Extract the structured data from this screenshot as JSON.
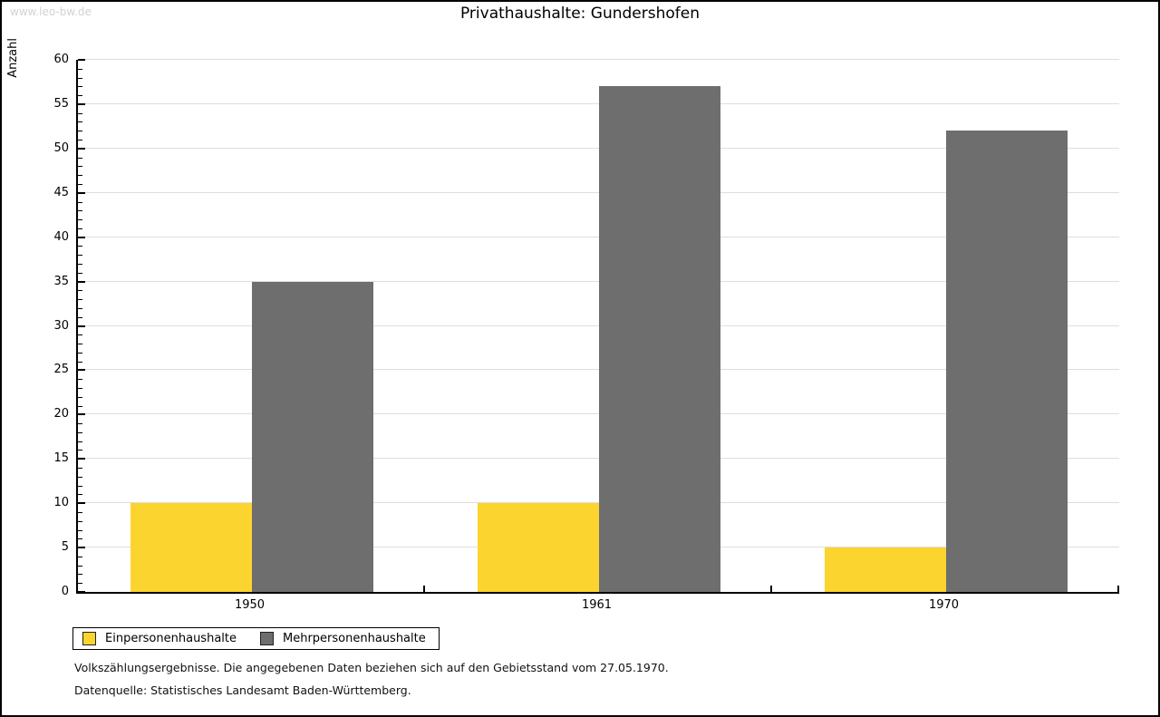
{
  "watermark": "www.leo-bw.de",
  "title": "Privathaushalte: Gundershofen",
  "chart_data": {
    "type": "bar",
    "title": "Privathaushalte: Gundershofen",
    "categories": [
      "1950",
      "1961",
      "1970"
    ],
    "series": [
      {
        "name": "Einpersonenhaushalte",
        "color": "#fcd42f",
        "values": [
          10,
          10,
          5
        ]
      },
      {
        "name": "Mehrpersonenhaushalte",
        "color": "#6e6e6e",
        "values": [
          35,
          57,
          52
        ]
      }
    ],
    "xlabel": "",
    "ylabel": "Anzahl",
    "ylim": [
      0,
      60
    ],
    "ytick_step": 5,
    "yminor_step": 1,
    "grid": true,
    "legend_position": "bottom-left",
    "grid_color": "#dedede",
    "axis_color": "#000000"
  },
  "footer": {
    "line1": "Volkszählungsergebnisse. Die angegebenen Daten beziehen sich auf den Gebietsstand vom 27.05.1970.",
    "line2": "Datenquelle: Statistisches Landesamt Baden-Württemberg."
  }
}
